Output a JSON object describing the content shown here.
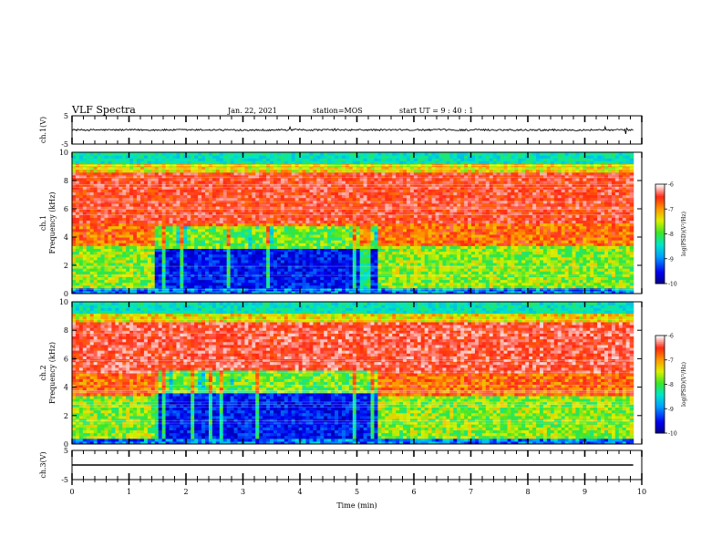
{
  "header": {
    "title": "VLF Spectra",
    "date": "Jan. 22, 2021",
    "station": "station=MOS",
    "start_ut": "start  UT  =   9 : 40 : 1"
  },
  "chart_data": [
    {
      "type": "line",
      "panel": "ch1-waveform",
      "ylabel": "ch.1(V)",
      "ylim": [
        -5,
        5
      ],
      "yticks": [
        "5",
        "-5"
      ],
      "xlim": [
        0,
        10
      ],
      "baseline": 0
    },
    {
      "type": "heatmap",
      "panel": "ch1-spectrogram",
      "ylabel": "ch.1\nFrequency (kHz)",
      "ylim": [
        0,
        10
      ],
      "yticks": [
        "10",
        "8",
        "6",
        "4",
        "2",
        "0"
      ],
      "xlim": [
        0,
        10
      ],
      "data_end_min": 9.85,
      "quiet_band": {
        "t_start": 1.45,
        "t_end": 5.35,
        "f_low": 0.3,
        "f_high": 3.2
      },
      "colorbar": {
        "label": "log(PSD)(V²/Hz)",
        "range": [
          -10,
          -6
        ],
        "ticks": [
          "-6",
          "-7",
          "-8",
          "-9",
          "-10"
        ]
      }
    },
    {
      "type": "heatmap",
      "panel": "ch2-spectrogram",
      "ylabel": "ch.2\nFrequency (kHz)",
      "ylim": [
        0,
        10
      ],
      "yticks": [
        "10",
        "8",
        "6",
        "4",
        "2",
        "0"
      ],
      "xlim": [
        0,
        10
      ],
      "data_end_min": 9.85,
      "quiet_band": {
        "t_start": 1.45,
        "t_end": 5.35,
        "f_low": 0.3,
        "f_high": 3.6
      },
      "colorbar": {
        "label": "log(PSD)(V²/Hz)",
        "range": [
          -10,
          -6
        ],
        "ticks": [
          "-6",
          "-7",
          "-8",
          "-9",
          "-10"
        ]
      }
    },
    {
      "type": "line",
      "panel": "ch3-waveform",
      "ylabel": "ch.3(V)",
      "ylim": [
        -5,
        5
      ],
      "yticks": [
        "5",
        "-5"
      ],
      "xlim": [
        0,
        10
      ],
      "baseline": 0
    }
  ],
  "x_axis": {
    "xlabel": "Time  (min)",
    "ticks": [
      "0",
      "1",
      "2",
      "3",
      "4",
      "5",
      "6",
      "7",
      "8",
      "9",
      "10"
    ]
  }
}
